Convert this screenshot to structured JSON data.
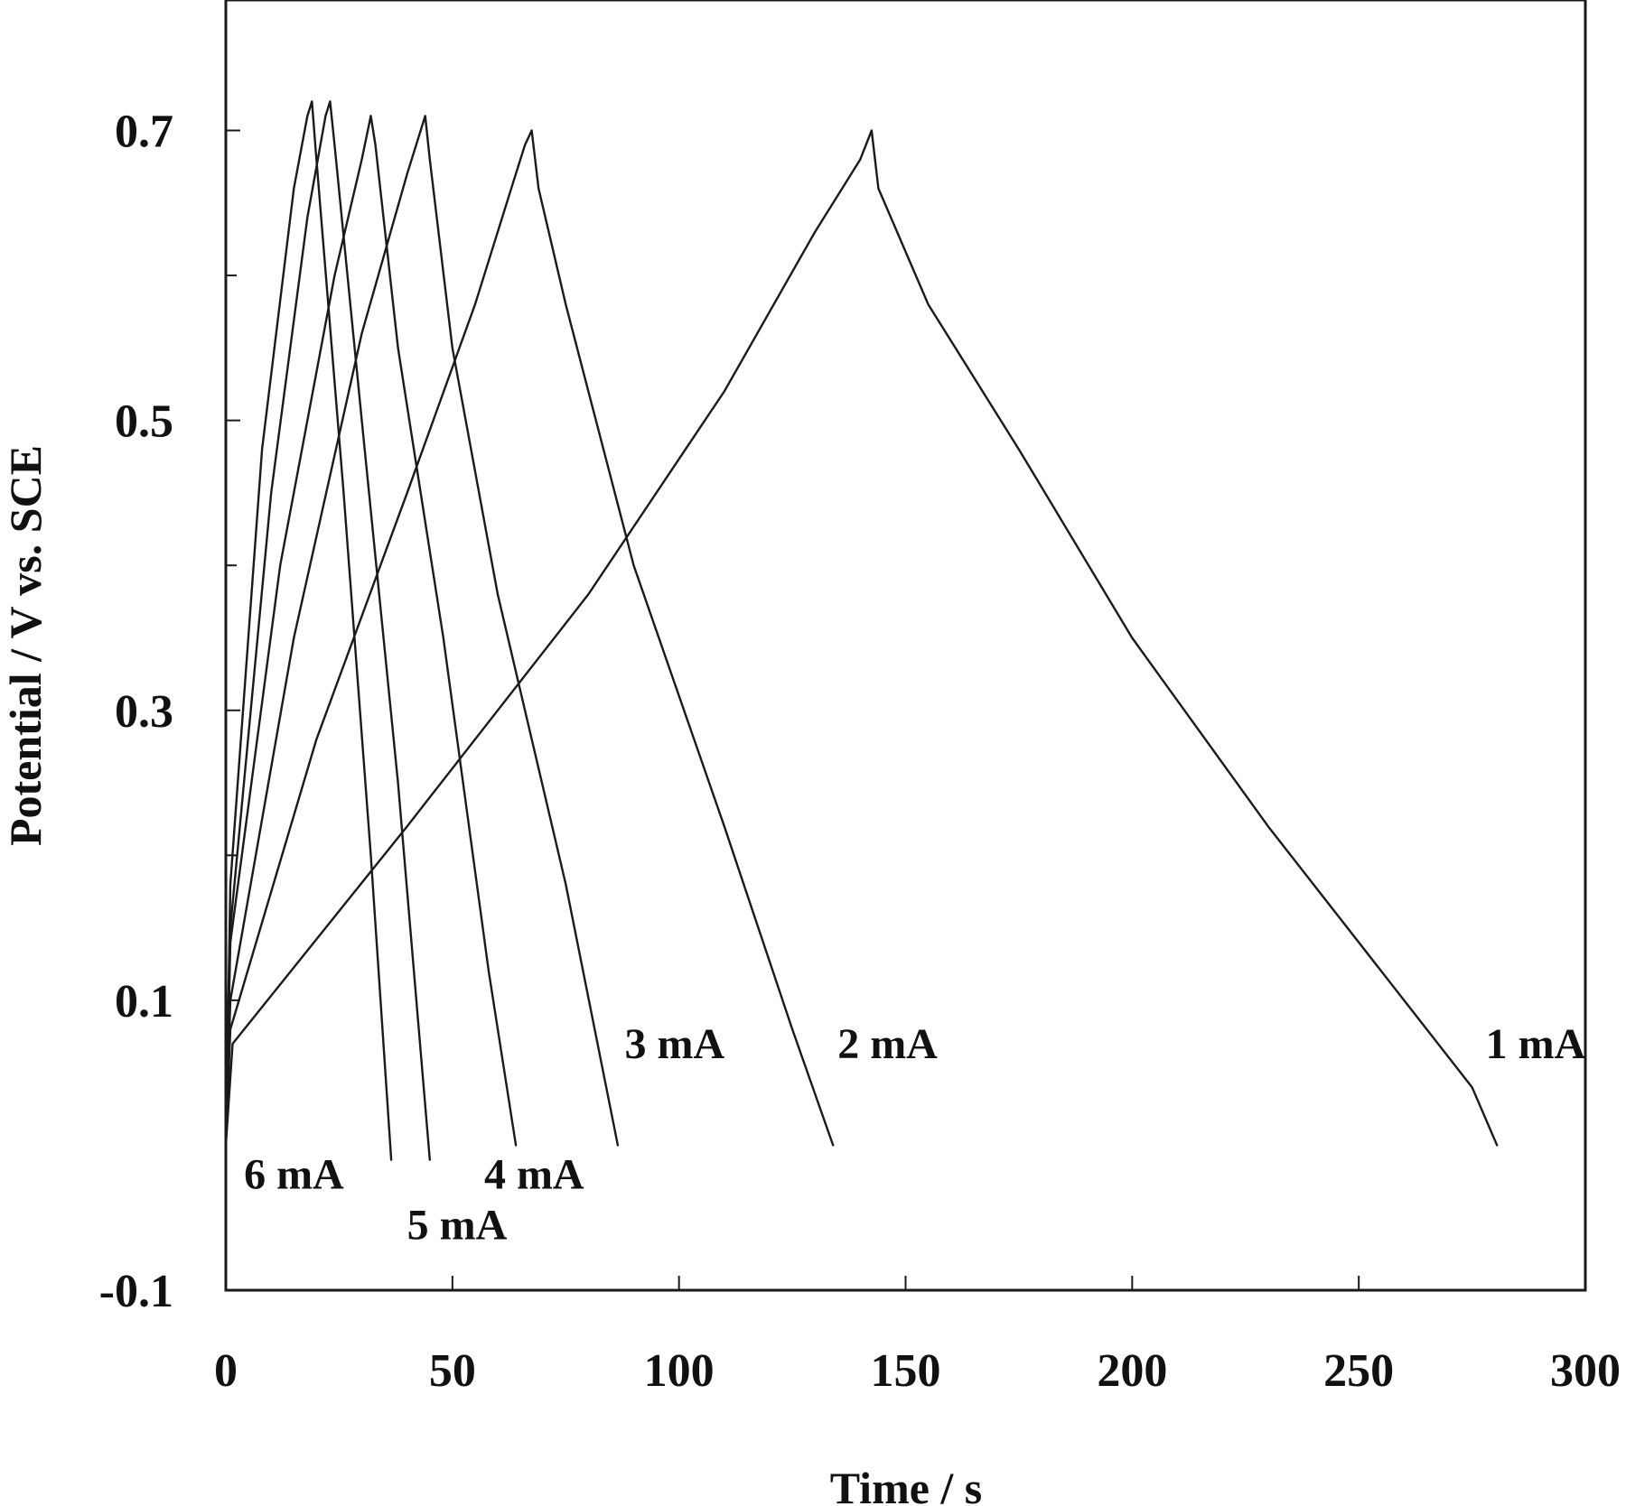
{
  "chart_data": {
    "type": "line",
    "title": "",
    "xlabel": "Time / s",
    "ylabel": "Potential / V vs. SCE",
    "xlim": [
      0,
      300
    ],
    "ylim": [
      -0.1,
      0.79
    ],
    "xticks": [
      0,
      50,
      100,
      150,
      200,
      250,
      300
    ],
    "xtick_labels": [
      "0",
      "50",
      "100",
      "150",
      "200",
      "250",
      "300"
    ],
    "yticks_labeled": [
      -0.1,
      0.1,
      0.3,
      0.5,
      0.7
    ],
    "ytick_labels": [
      "-0.1",
      "0.1",
      "0.3",
      "0.5",
      "0.7"
    ],
    "yticks_minor": [
      0.2,
      0.4,
      0.6
    ],
    "grid": false,
    "legend": "none",
    "line_color": "#1a1a1a",
    "series": [
      {
        "name": "1 mA",
        "x": [
          0,
          1.5,
          40,
          80,
          110,
          130,
          140,
          142.5,
          144,
          155,
          175,
          200,
          230,
          260,
          275,
          280.5
        ],
        "y": [
          0.0,
          0.07,
          0.22,
          0.38,
          0.52,
          0.63,
          0.68,
          0.7,
          0.66,
          0.58,
          0.48,
          0.35,
          0.22,
          0.1,
          0.04,
          0.0
        ],
        "label_at": [
          278,
          0.07
        ]
      },
      {
        "name": "2 mA",
        "x": [
          0,
          1,
          20,
          40,
          55,
          63,
          66,
          67.5,
          69,
          75,
          90,
          110,
          125,
          134
        ],
        "y": [
          0.0,
          0.08,
          0.28,
          0.45,
          0.58,
          0.66,
          0.69,
          0.7,
          0.66,
          0.58,
          0.4,
          0.22,
          0.08,
          0.0
        ],
        "label_at": [
          135,
          0.07
        ]
      },
      {
        "name": "3 mA",
        "x": [
          0,
          1,
          15,
          30,
          40,
          43,
          44,
          45,
          50,
          60,
          75,
          86.5
        ],
        "y": [
          0.0,
          0.1,
          0.35,
          0.56,
          0.67,
          0.7,
          0.71,
          0.68,
          0.55,
          0.38,
          0.18,
          0.0
        ],
        "label_at": [
          88,
          0.07
        ]
      },
      {
        "name": "4 mA",
        "x": [
          0,
          1,
          12,
          24,
          30,
          32,
          33,
          38,
          48,
          58,
          64
        ],
        "y": [
          0.0,
          0.14,
          0.4,
          0.6,
          0.68,
          0.71,
          0.69,
          0.55,
          0.35,
          0.12,
          0.0
        ],
        "label_at": [
          57,
          -0.02
        ]
      },
      {
        "name": "5 mA",
        "x": [
          0,
          1,
          10,
          18,
          22,
          23,
          24,
          30,
          38,
          45
        ],
        "y": [
          0.0,
          0.15,
          0.45,
          0.64,
          0.71,
          0.72,
          0.69,
          0.5,
          0.25,
          -0.01
        ],
        "label_at": [
          40,
          -0.055
        ]
      },
      {
        "name": "6 mA",
        "x": [
          0,
          1,
          8,
          15,
          18,
          19,
          20,
          26,
          32,
          36.5
        ],
        "y": [
          0.0,
          0.18,
          0.48,
          0.66,
          0.71,
          0.72,
          0.68,
          0.45,
          0.2,
          -0.01
        ],
        "label_at": [
          4,
          -0.02
        ]
      }
    ]
  }
}
